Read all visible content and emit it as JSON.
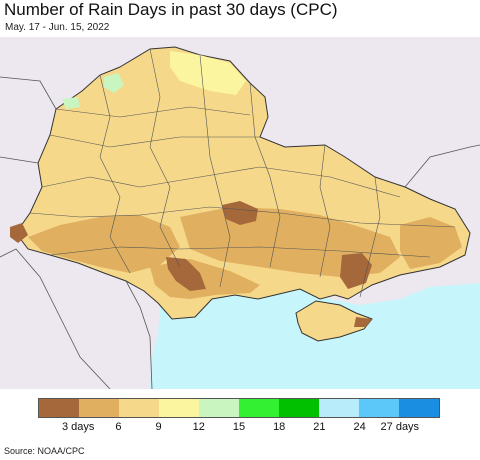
{
  "header": {
    "title": "Number of Rain Days in past 30 days (CPC)",
    "subtitle": "May. 17 - Jun. 15, 2022"
  },
  "legend": {
    "colors": [
      "#a5683a",
      "#e0b060",
      "#f5d88a",
      "#fbf5a0",
      "#c8f5c0",
      "#33f033",
      "#00c000",
      "#b8ecfa",
      "#5cc8fa",
      "#1a8ee0"
    ],
    "labels": [
      "3 days",
      "6",
      "9",
      "12",
      "15",
      "18",
      "21",
      "24",
      "27 days"
    ]
  },
  "colors": {
    "water": "#c6f5fb",
    "outside": "#ede8ef",
    "borders": "#444444"
  },
  "footer": {
    "source": "Source: NOAA/CPC"
  }
}
